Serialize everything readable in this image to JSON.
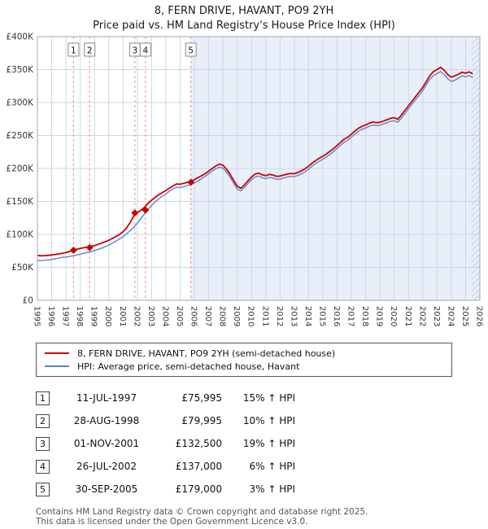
{
  "header": {
    "title": "8, FERN DRIVE, HAVANT, PO9 2YH",
    "subtitle": "Price paid vs. HM Land Registry's House Price Index (HPI)"
  },
  "legend": {
    "series": [
      {
        "label": "8, FERN DRIVE, HAVANT, PO9 2YH (semi-detached house)",
        "color": "#cc0000"
      },
      {
        "label": "HPI: Average price, semi-detached house, Havant",
        "color": "#5c85c7"
      }
    ]
  },
  "transactions": [
    {
      "num": "1",
      "date": "11-JUL-1997",
      "price": "£75,995",
      "hpi": "15% ↑ HPI"
    },
    {
      "num": "2",
      "date": "28-AUG-1998",
      "price": "£79,995",
      "hpi": "10% ↑ HPI"
    },
    {
      "num": "3",
      "date": "01-NOV-2001",
      "price": "£132,500",
      "hpi": "19% ↑ HPI"
    },
    {
      "num": "4",
      "date": "26-JUL-2002",
      "price": "£137,000",
      "hpi": "6% ↑ HPI"
    },
    {
      "num": "5",
      "date": "30-SEP-2005",
      "price": "£179,000",
      "hpi": "3% ↑ HPI"
    }
  ],
  "footer": {
    "line1": "Contains HM Land Registry data © Crown copyright and database right 2025.",
    "line2": "This data is licensed under the Open Government Licence v3.0."
  },
  "chart_data": {
    "type": "line",
    "title": "8, FERN DRIVE, HAVANT, PO9 2YH",
    "subtitle": "Price paid vs. HM Land Registry's House Price Index (HPI)",
    "x_range": [
      1995,
      2026
    ],
    "y_range": [
      0,
      400
    ],
    "y_unit": "GBP_thousands",
    "y_tick_step": 50,
    "y_tick_labels": [
      "£0",
      "£50K",
      "£100K",
      "£150K",
      "£200K",
      "£250K",
      "£300K",
      "£350K",
      "£400K"
    ],
    "grid": true,
    "legend_position": "below",
    "shaded_region": {
      "from": 2005.75,
      "to": 2026,
      "color": "#e9eff9"
    },
    "hatched_region": {
      "from": 2025.42,
      "to": 2026
    },
    "sales": [
      {
        "num": 1,
        "x": 1997.53,
        "y": 75.995
      },
      {
        "num": 2,
        "x": 1998.66,
        "y": 79.995
      },
      {
        "num": 3,
        "x": 2001.83,
        "y": 132.5
      },
      {
        "num": 4,
        "x": 2002.57,
        "y": 137
      },
      {
        "num": 5,
        "x": 2005.75,
        "y": 179
      }
    ],
    "series": [
      {
        "name": "8, FERN DRIVE, HAVANT, PO9 2YH (semi-detached house)",
        "color": "#cc0000",
        "x_start": 1995,
        "x_step": 0.25,
        "values": [
          68,
          67.5,
          67.8,
          68.2,
          68.8,
          69.5,
          70.4,
          71.4,
          72.5,
          74,
          76,
          77.5,
          78.8,
          79.8,
          80.8,
          81.8,
          83,
          84.8,
          86.8,
          88.8,
          91,
          93.8,
          96.8,
          100,
          104,
          110,
          118,
          128,
          133,
          136.5,
          141,
          147,
          152,
          156,
          160,
          163.5,
          166.5,
          170,
          173.5,
          176.5,
          176,
          177.5,
          179,
          180.5,
          183,
          186,
          189,
          192,
          196,
          200,
          204,
          206.5,
          205,
          199,
          191,
          182,
          173,
          170,
          175,
          181,
          187,
          191.5,
          193,
          190.5,
          189,
          191,
          190,
          188,
          188.5,
          190,
          191.5,
          192.5,
          192,
          194,
          196.5,
          199.5,
          203.5,
          208,
          212,
          215.5,
          218.5,
          222,
          226,
          230,
          235,
          240,
          244.5,
          247.5,
          252,
          257,
          261,
          264,
          266,
          268.5,
          270.5,
          269.5,
          270,
          272,
          274,
          276,
          277,
          274.5,
          281,
          288,
          295,
          302,
          309,
          316,
          323,
          332,
          341,
          347,
          350,
          353.5,
          349,
          342.5,
          338.5,
          340.5,
          343,
          346,
          344.5,
          346.5,
          343.5
        ]
      },
      {
        "name": "HPI: Average price, semi-detached house, Havant",
        "color": "#5c85c7",
        "x_start": 1995,
        "x_step": 0.25,
        "values": [
          60,
          60.3,
          60.8,
          61.3,
          62,
          63,
          64.2,
          65.3,
          65.5,
          66.5,
          67.5,
          68.8,
          70,
          71.3,
          72.5,
          73.8,
          75.5,
          77.3,
          79.3,
          81.3,
          83.8,
          86.8,
          89.8,
          93,
          96.5,
          101,
          106,
          111,
          117,
          124,
          131,
          138,
          144,
          149,
          154,
          158,
          161,
          165.5,
          169,
          171.5,
          171,
          172.5,
          174,
          175.5,
          178,
          181,
          184.5,
          188,
          192,
          196,
          199.5,
          202,
          200.5,
          194.5,
          186.5,
          177.5,
          168.5,
          166,
          171,
          177,
          183,
          187,
          188.5,
          186,
          184.5,
          186.5,
          185.5,
          183.5,
          184,
          185.5,
          187,
          188,
          187.5,
          189.5,
          192,
          195,
          199,
          203.5,
          207.5,
          211,
          214,
          217.5,
          221.5,
          225.5,
          230.5,
          235.5,
          240,
          243,
          247.5,
          252.5,
          256.5,
          259.5,
          261.5,
          264,
          266,
          265,
          265.5,
          267.5,
          269.5,
          271.5,
          272.5,
          270,
          276.5,
          283.5,
          290.5,
          297.5,
          304.5,
          311,
          318,
          327,
          335.5,
          341,
          344,
          347,
          342.5,
          336,
          332,
          334,
          337,
          340.5,
          339,
          341,
          338
        ]
      }
    ]
  }
}
